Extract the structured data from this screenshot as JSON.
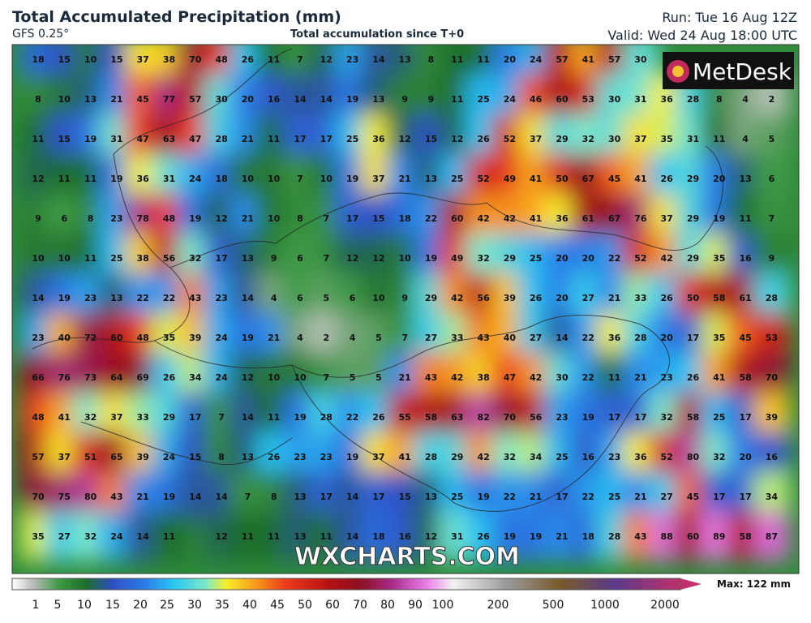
{
  "header": {
    "title": "Total Accumulated Precipitation (mm)",
    "model": "GFS 0.25°",
    "subtitle": "Total accumulation since T+0",
    "run": "Run: Tue 16 Aug 12Z",
    "valid": "Valid: Wed 24 Aug 18:00 UTC"
  },
  "logo": "MetDesk",
  "watermark": "WXCHARTS.COM",
  "grid": {
    "rows": [
      [
        18,
        15,
        10,
        15,
        37,
        38,
        70,
        48,
        26,
        11,
        7,
        12,
        23,
        14,
        13,
        8,
        11,
        11,
        20,
        24,
        57,
        41,
        57,
        30,
        null,
        null,
        null,
        null,
        null
      ],
      [
        8,
        10,
        13,
        21,
        45,
        77,
        57,
        30,
        20,
        16,
        14,
        14,
        19,
        13,
        9,
        9,
        11,
        25,
        24,
        46,
        60,
        53,
        30,
        31,
        36,
        28,
        8,
        4,
        2
      ],
      [
        11,
        15,
        19,
        31,
        47,
        63,
        47,
        28,
        21,
        11,
        17,
        17,
        25,
        36,
        12,
        15,
        12,
        26,
        52,
        37,
        29,
        32,
        30,
        37,
        35,
        31,
        11,
        4,
        5
      ],
      [
        12,
        11,
        11,
        19,
        36,
        31,
        24,
        18,
        10,
        10,
        7,
        10,
        19,
        37,
        21,
        13,
        25,
        52,
        49,
        41,
        50,
        67,
        45,
        41,
        26,
        29,
        20,
        13,
        6
      ],
      [
        9,
        6,
        8,
        23,
        78,
        48,
        19,
        12,
        21,
        10,
        8,
        7,
        17,
        15,
        18,
        22,
        60,
        42,
        42,
        41,
        36,
        61,
        67,
        76,
        37,
        29,
        19,
        11,
        7
      ],
      [
        10,
        10,
        11,
        25,
        38,
        56,
        32,
        17,
        13,
        9,
        6,
        7,
        12,
        12,
        10,
        19,
        49,
        32,
        29,
        25,
        20,
        20,
        22,
        52,
        42,
        29,
        35,
        16,
        9
      ],
      [
        14,
        19,
        23,
        13,
        22,
        22,
        43,
        23,
        14,
        4,
        6,
        5,
        6,
        10,
        9,
        29,
        42,
        56,
        39,
        26,
        20,
        27,
        21,
        33,
        26,
        50,
        58,
        61,
        28
      ],
      [
        23,
        40,
        72,
        60,
        48,
        35,
        39,
        24,
        19,
        21,
        4,
        2,
        4,
        5,
        7,
        27,
        33,
        43,
        40,
        27,
        14,
        22,
        36,
        28,
        20,
        17,
        35,
        45,
        53
      ],
      [
        66,
        76,
        73,
        64,
        69,
        26,
        34,
        24,
        12,
        10,
        10,
        7,
        5,
        5,
        21,
        43,
        42,
        38,
        47,
        42,
        30,
        22,
        11,
        21,
        23,
        26,
        41,
        58,
        70
      ],
      [
        48,
        41,
        32,
        37,
        33,
        29,
        17,
        7,
        14,
        11,
        19,
        28,
        22,
        26,
        55,
        58,
        63,
        82,
        70,
        56,
        23,
        19,
        17,
        17,
        32,
        58,
        25,
        17,
        39
      ],
      [
        57,
        37,
        51,
        65,
        39,
        24,
        15,
        8,
        13,
        26,
        23,
        23,
        19,
        37,
        41,
        28,
        29,
        42,
        32,
        34,
        25,
        16,
        23,
        36,
        52,
        80,
        32,
        20,
        16
      ],
      [
        70,
        75,
        80,
        43,
        21,
        19,
        14,
        14,
        7,
        8,
        13,
        17,
        14,
        17,
        15,
        13,
        25,
        19,
        22,
        21,
        17,
        22,
        25,
        21,
        27,
        45,
        17,
        17,
        34
      ],
      [
        35,
        27,
        32,
        24,
        14,
        11,
        null,
        12,
        11,
        11,
        13,
        11,
        14,
        18,
        16,
        12,
        31,
        26,
        19,
        19,
        21,
        18,
        28,
        43,
        88,
        60,
        89,
        58,
        87
      ]
    ]
  },
  "colorbar": {
    "ticks": [
      1,
      5,
      10,
      15,
      20,
      25,
      30,
      35,
      40,
      45,
      50,
      60,
      70,
      80,
      90,
      100,
      200,
      500,
      1000,
      2000
    ],
    "max_label": "Max: 122 mm"
  }
}
